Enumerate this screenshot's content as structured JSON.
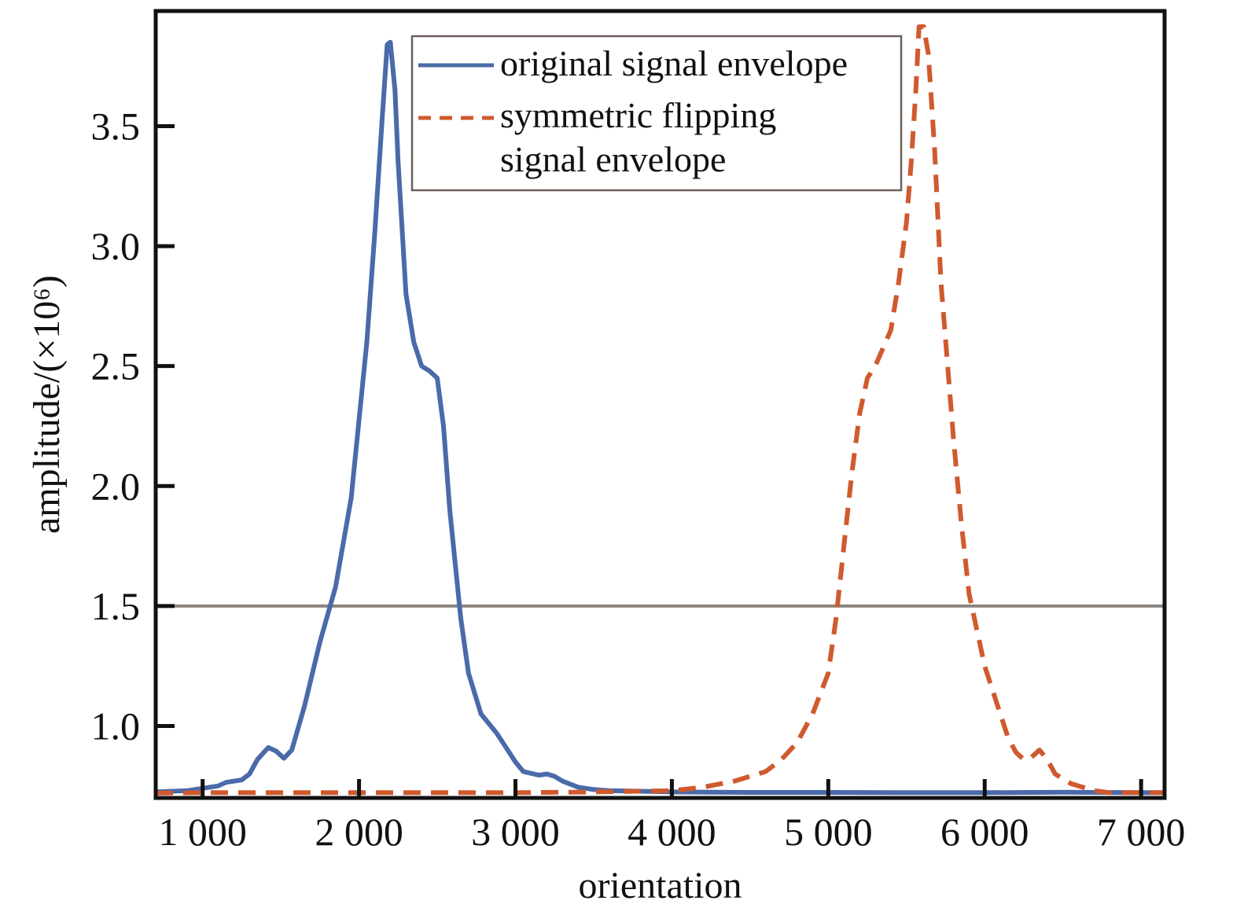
{
  "chart_data": {
    "type": "line",
    "title": "",
    "xlabel": "orientation",
    "ylabel": "amplitude/(×10⁶)",
    "xlim": [
      700,
      7150
    ],
    "ylim": [
      0.7,
      3.98
    ],
    "xticks": [
      {
        "value": 1000,
        "label": "1 000"
      },
      {
        "value": 2000,
        "label": "2 000"
      },
      {
        "value": 3000,
        "label": "3 000"
      },
      {
        "value": 4000,
        "label": "4 000"
      },
      {
        "value": 5000,
        "label": "5 000"
      },
      {
        "value": 6000,
        "label": "6 000"
      },
      {
        "value": 7000,
        "label": "7 000"
      }
    ],
    "yticks": [
      {
        "value": 1.0,
        "label": "1.0"
      },
      {
        "value": 1.5,
        "label": "1.5"
      },
      {
        "value": 2.0,
        "label": "2.0"
      },
      {
        "value": 2.5,
        "label": "2.5"
      },
      {
        "value": 3.0,
        "label": "3.0"
      },
      {
        "value": 3.5,
        "label": "3.5"
      }
    ],
    "grid": false,
    "legend_position": "top-center",
    "reference_line": {
      "y": 1.5,
      "color": "#8c8480"
    },
    "series": [
      {
        "name": "original signal envelope",
        "style": "solid",
        "color": "#4a6aa9",
        "x": [
          700,
          900,
          1000,
          1100,
          1150,
          1250,
          1300,
          1350,
          1420,
          1470,
          1520,
          1570,
          1650,
          1750,
          1850,
          1950,
          2050,
          2100,
          2150,
          2180,
          2200,
          2230,
          2250,
          2300,
          2350,
          2400,
          2450,
          2500,
          2540,
          2580,
          2650,
          2700,
          2780,
          2880,
          2950,
          3000,
          3050,
          3150,
          3200,
          3250,
          3300,
          3400,
          3500,
          3600,
          3800,
          4000,
          4500,
          5000,
          5500,
          6000,
          6500,
          7000,
          7150
        ],
        "y": [
          0.725,
          0.73,
          0.74,
          0.75,
          0.765,
          0.775,
          0.8,
          0.86,
          0.91,
          0.895,
          0.865,
          0.9,
          1.08,
          1.35,
          1.58,
          1.95,
          2.6,
          3.05,
          3.55,
          3.84,
          3.85,
          3.65,
          3.35,
          2.8,
          2.6,
          2.5,
          2.48,
          2.45,
          2.25,
          1.9,
          1.45,
          1.22,
          1.05,
          0.97,
          0.9,
          0.85,
          0.81,
          0.795,
          0.8,
          0.79,
          0.77,
          0.745,
          0.735,
          0.73,
          0.728,
          0.725,
          0.723,
          0.723,
          0.722,
          0.722,
          0.724,
          0.722,
          0.722
        ]
      },
      {
        "name": "symmetric flipping signal envelope",
        "style": "dashed",
        "color": "#cf5a2e",
        "x": [
          700,
          1000,
          1500,
          2000,
          2500,
          3000,
          3500,
          4000,
          4200,
          4400,
          4600,
          4700,
          4800,
          4900,
          5000,
          5050,
          5100,
          5150,
          5200,
          5250,
          5300,
          5400,
          5450,
          5500,
          5530,
          5560,
          5580,
          5610,
          5640,
          5680,
          5720,
          5800,
          5850,
          5900,
          6000,
          6100,
          6150,
          6200,
          6250,
          6300,
          6350,
          6400,
          6450,
          6550,
          6700,
          6800,
          7000,
          7150
        ],
        "y": [
          0.72,
          0.722,
          0.722,
          0.722,
          0.722,
          0.722,
          0.725,
          0.73,
          0.745,
          0.77,
          0.81,
          0.86,
          0.93,
          1.05,
          1.22,
          1.45,
          1.75,
          2.05,
          2.3,
          2.45,
          2.5,
          2.65,
          2.85,
          3.1,
          3.35,
          3.65,
          3.92,
          3.95,
          3.8,
          3.4,
          2.85,
          2.2,
          1.85,
          1.55,
          1.25,
          1.05,
          0.95,
          0.89,
          0.86,
          0.87,
          0.9,
          0.86,
          0.8,
          0.76,
          0.73,
          0.722,
          0.722,
          0.722
        ]
      }
    ]
  }
}
